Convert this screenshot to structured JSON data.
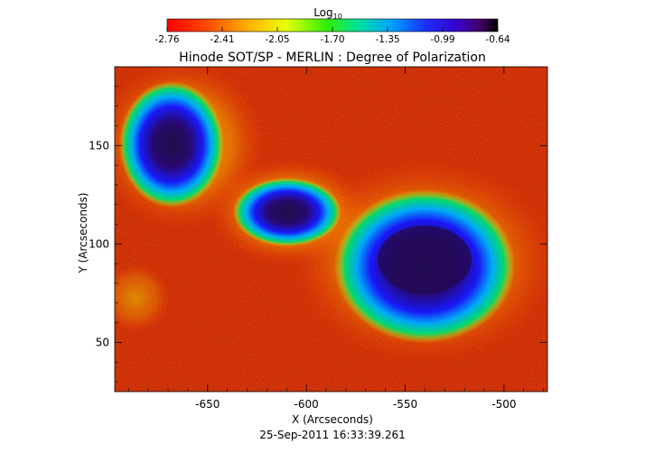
{
  "chart_data": {
    "type": "heatmap",
    "title": "Hinode SOT/SP - MERLIN : Degree of Polarization",
    "xlabel": "X (Arcseconds)",
    "ylabel": "Y (Arcseconds)",
    "timestamp": "25-Sep-2011 16:33:39.261",
    "colorbar": {
      "title_base": "Log",
      "title_sub": "10",
      "ticks": [
        "-2.76",
        "-2.41",
        "-2.05",
        "-1.70",
        "-1.35",
        "-0.99",
        "-0.64"
      ],
      "range": [
        -2.76,
        -0.64
      ],
      "colormap": "rainbow (red=low, black=high)"
    },
    "x_ticks": [
      -650,
      -600,
      -550,
      -500
    ],
    "y_ticks": [
      50,
      100,
      150
    ],
    "xlim": [
      -697,
      -478
    ],
    "ylim": [
      25,
      190
    ]
  },
  "colors": {
    "background": "#ffffff",
    "low": "#e8230a",
    "mid_low": "#f5b800",
    "mid": "#00d870",
    "mid_high": "#1a2aff",
    "high": "#2a0a60"
  }
}
